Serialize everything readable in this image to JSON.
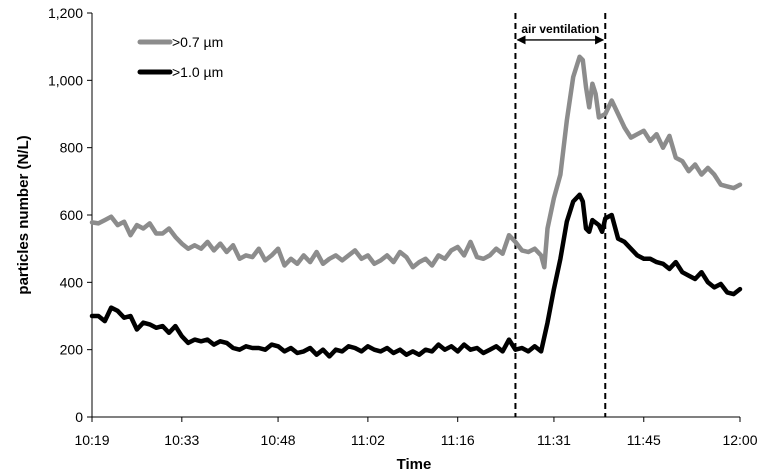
{
  "chart_data": {
    "type": "line",
    "title": "",
    "xlabel": "Time",
    "ylabel": "particles number (N/L)",
    "x_ticks": [
      "10:19",
      "10:33",
      "10:48",
      "11:02",
      "11:16",
      "11:31",
      "11:45",
      "12:00"
    ],
    "x_tick_minutes": [
      619,
      633,
      648,
      662,
      676,
      691,
      705,
      720
    ],
    "xlim": [
      "10:19",
      "12:00"
    ],
    "y_ticks": [
      "0",
      "200",
      "400",
      "600",
      "800",
      "1,000",
      "1,200"
    ],
    "y_tick_values": [
      0,
      200,
      400,
      600,
      800,
      1000,
      1200
    ],
    "ylim": [
      0,
      1200
    ],
    "grid": false,
    "legend_position": "top-left",
    "series": [
      {
        "name": ">0.7 µm",
        "color": "#8c8c8c",
        "points": [
          [
            "10:19",
            578
          ],
          [
            "10:20",
            575
          ],
          [
            "10:21",
            585
          ],
          [
            "10:22",
            595
          ],
          [
            "10:23",
            570
          ],
          [
            "10:24",
            580
          ],
          [
            "10:25",
            540
          ],
          [
            "10:26",
            570
          ],
          [
            "10:27",
            560
          ],
          [
            "10:28",
            575
          ],
          [
            "10:29",
            545
          ],
          [
            "10:30",
            545
          ],
          [
            "10:31",
            560
          ],
          [
            "10:32",
            535
          ],
          [
            "10:33",
            515
          ],
          [
            "10:34",
            500
          ],
          [
            "10:35",
            510
          ],
          [
            "10:36",
            500
          ],
          [
            "10:37",
            520
          ],
          [
            "10:38",
            495
          ],
          [
            "10:39",
            515
          ],
          [
            "10:40",
            490
          ],
          [
            "10:41",
            510
          ],
          [
            "10:42",
            470
          ],
          [
            "10:43",
            480
          ],
          [
            "10:44",
            475
          ],
          [
            "10:45",
            500
          ],
          [
            "10:46",
            465
          ],
          [
            "10:47",
            480
          ],
          [
            "10:48",
            500
          ],
          [
            "10:49",
            450
          ],
          [
            "10:50",
            470
          ],
          [
            "10:51",
            455
          ],
          [
            "10:52",
            480
          ],
          [
            "10:53",
            460
          ],
          [
            "10:54",
            490
          ],
          [
            "10:55",
            455
          ],
          [
            "10:56",
            470
          ],
          [
            "10:57",
            480
          ],
          [
            "10:58",
            465
          ],
          [
            "10:59",
            480
          ],
          [
            "11:00",
            495
          ],
          [
            "11:01",
            470
          ],
          [
            "11:02",
            480
          ],
          [
            "11:03",
            455
          ],
          [
            "11:04",
            465
          ],
          [
            "11:05",
            480
          ],
          [
            "11:06",
            460
          ],
          [
            "11:07",
            490
          ],
          [
            "11:08",
            475
          ],
          [
            "11:09",
            445
          ],
          [
            "11:10",
            460
          ],
          [
            "11:11",
            470
          ],
          [
            "11:12",
            450
          ],
          [
            "11:13",
            480
          ],
          [
            "11:14",
            470
          ],
          [
            "11:15",
            495
          ],
          [
            "11:16",
            505
          ],
          [
            "11:17",
            480
          ],
          [
            "11:18",
            520
          ],
          [
            "11:19",
            475
          ],
          [
            "11:20",
            470
          ],
          [
            "11:21",
            480
          ],
          [
            "11:22",
            500
          ],
          [
            "11:23",
            485
          ],
          [
            "11:24",
            540
          ],
          [
            "11:25",
            520
          ],
          [
            "11:26",
            495
          ],
          [
            "11:27",
            490
          ],
          [
            "11:28",
            500
          ],
          [
            "11:29",
            480
          ],
          [
            "11:29:30",
            445
          ],
          [
            "11:30",
            560
          ],
          [
            "11:31",
            650
          ],
          [
            "11:32",
            720
          ],
          [
            "11:33",
            880
          ],
          [
            "11:34",
            1010
          ],
          [
            "11:35",
            1070
          ],
          [
            "11:35:30",
            1060
          ],
          [
            "11:36",
            980
          ],
          [
            "11:36:30",
            920
          ],
          [
            "11:37",
            990
          ],
          [
            "11:37:30",
            960
          ],
          [
            "11:38",
            890
          ],
          [
            "11:39",
            900
          ],
          [
            "11:40",
            940
          ],
          [
            "11:41",
            900
          ],
          [
            "11:42",
            860
          ],
          [
            "11:43",
            830
          ],
          [
            "11:44",
            840
          ],
          [
            "11:45",
            850
          ],
          [
            "11:46",
            820
          ],
          [
            "11:47",
            840
          ],
          [
            "11:48",
            800
          ],
          [
            "11:49",
            835
          ],
          [
            "11:50",
            770
          ],
          [
            "11:51",
            760
          ],
          [
            "11:52",
            730
          ],
          [
            "11:53",
            750
          ],
          [
            "11:54",
            720
          ],
          [
            "11:55",
            740
          ],
          [
            "11:56",
            720
          ],
          [
            "11:57",
            690
          ],
          [
            "11:58",
            685
          ],
          [
            "11:59",
            680
          ],
          [
            "12:00",
            690
          ]
        ]
      },
      {
        "name": ">1.0 µm",
        "color": "#000000",
        "points": [
          [
            "10:19",
            300
          ],
          [
            "10:20",
            300
          ],
          [
            "10:21",
            285
          ],
          [
            "10:22",
            325
          ],
          [
            "10:23",
            315
          ],
          [
            "10:24",
            295
          ],
          [
            "10:25",
            300
          ],
          [
            "10:26",
            260
          ],
          [
            "10:27",
            280
          ],
          [
            "10:28",
            275
          ],
          [
            "10:29",
            265
          ],
          [
            "10:30",
            270
          ],
          [
            "10:31",
            250
          ],
          [
            "10:32",
            270
          ],
          [
            "10:33",
            240
          ],
          [
            "10:34",
            220
          ],
          [
            "10:35",
            230
          ],
          [
            "10:36",
            225
          ],
          [
            "10:37",
            230
          ],
          [
            "10:38",
            215
          ],
          [
            "10:39",
            225
          ],
          [
            "10:40",
            220
          ],
          [
            "10:41",
            205
          ],
          [
            "10:42",
            200
          ],
          [
            "10:43",
            210
          ],
          [
            "10:44",
            205
          ],
          [
            "10:45",
            205
          ],
          [
            "10:46",
            200
          ],
          [
            "10:47",
            215
          ],
          [
            "10:48",
            210
          ],
          [
            "10:49",
            195
          ],
          [
            "10:50",
            205
          ],
          [
            "10:51",
            190
          ],
          [
            "10:52",
            195
          ],
          [
            "10:53",
            205
          ],
          [
            "10:54",
            185
          ],
          [
            "10:55",
            200
          ],
          [
            "10:56",
            180
          ],
          [
            "10:57",
            200
          ],
          [
            "10:58",
            195
          ],
          [
            "10:59",
            210
          ],
          [
            "11:00",
            205
          ],
          [
            "11:01",
            195
          ],
          [
            "11:02",
            210
          ],
          [
            "11:03",
            200
          ],
          [
            "11:04",
            195
          ],
          [
            "11:05",
            205
          ],
          [
            "11:06",
            190
          ],
          [
            "11:07",
            200
          ],
          [
            "11:08",
            185
          ],
          [
            "11:09",
            195
          ],
          [
            "11:10",
            185
          ],
          [
            "11:11",
            200
          ],
          [
            "11:12",
            195
          ],
          [
            "11:13",
            215
          ],
          [
            "11:14",
            200
          ],
          [
            "11:15",
            210
          ],
          [
            "11:16",
            195
          ],
          [
            "11:17",
            215
          ],
          [
            "11:18",
            200
          ],
          [
            "11:19",
            205
          ],
          [
            "11:20",
            190
          ],
          [
            "11:21",
            200
          ],
          [
            "11:22",
            210
          ],
          [
            "11:23",
            195
          ],
          [
            "11:24",
            230
          ],
          [
            "11:25",
            200
          ],
          [
            "11:26",
            205
          ],
          [
            "11:27",
            195
          ],
          [
            "11:28",
            210
          ],
          [
            "11:29",
            195
          ],
          [
            "11:30",
            280
          ],
          [
            "11:31",
            380
          ],
          [
            "11:32",
            470
          ],
          [
            "11:33",
            580
          ],
          [
            "11:34",
            640
          ],
          [
            "11:35",
            660
          ],
          [
            "11:35:30",
            640
          ],
          [
            "11:36",
            560
          ],
          [
            "11:36:30",
            550
          ],
          [
            "11:37",
            585
          ],
          [
            "11:38",
            570
          ],
          [
            "11:38:30",
            550
          ],
          [
            "11:39",
            590
          ],
          [
            "11:40",
            600
          ],
          [
            "11:41",
            530
          ],
          [
            "11:42",
            520
          ],
          [
            "11:43",
            500
          ],
          [
            "11:44",
            480
          ],
          [
            "11:45",
            470
          ],
          [
            "11:46",
            470
          ],
          [
            "11:47",
            460
          ],
          [
            "11:48",
            455
          ],
          [
            "11:49",
            440
          ],
          [
            "11:50",
            460
          ],
          [
            "11:51",
            430
          ],
          [
            "11:52",
            420
          ],
          [
            "11:53",
            410
          ],
          [
            "11:54",
            430
          ],
          [
            "11:55",
            400
          ],
          [
            "11:56",
            385
          ],
          [
            "11:57",
            395
          ],
          [
            "11:58",
            370
          ],
          [
            "11:59",
            365
          ],
          [
            "12:00",
            380
          ]
        ]
      }
    ],
    "annotations": [
      {
        "type": "vertical-line",
        "style": "dashed",
        "x": "11:25"
      },
      {
        "type": "vertical-line",
        "style": "dashed",
        "x": "11:39"
      },
      {
        "type": "double-arrow",
        "from": "11:25",
        "to": "11:39",
        "y": 1120,
        "label": "air ventilation"
      }
    ]
  }
}
